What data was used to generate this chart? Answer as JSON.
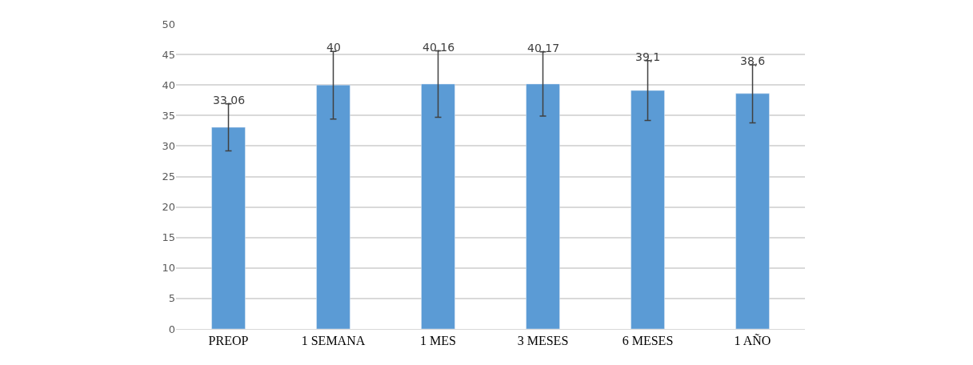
{
  "chart_data": {
    "type": "bar",
    "categories": [
      "PREOP",
      "1 SEMANA",
      "1 MES",
      "3 MESES",
      "6 MESES",
      "1 AÑO"
    ],
    "values": [
      33.06,
      40,
      40.16,
      40.17,
      39.1,
      38.6
    ],
    "value_labels": [
      "33,06",
      "40",
      "40,16",
      "40,17",
      "39,1",
      "38,6"
    ],
    "errors": [
      [
        29.2,
        36.9
      ],
      [
        34.4,
        45.5
      ],
      [
        34.7,
        45.6
      ],
      [
        34.9,
        45.45
      ],
      [
        34.2,
        44.0
      ],
      [
        33.8,
        43.3
      ]
    ],
    "color": "#5b9bd5",
    "ylim": [
      0,
      50
    ],
    "yticks": [
      0,
      5,
      10,
      15,
      20,
      25,
      30,
      35,
      40,
      45,
      50
    ],
    "grid": "y"
  }
}
